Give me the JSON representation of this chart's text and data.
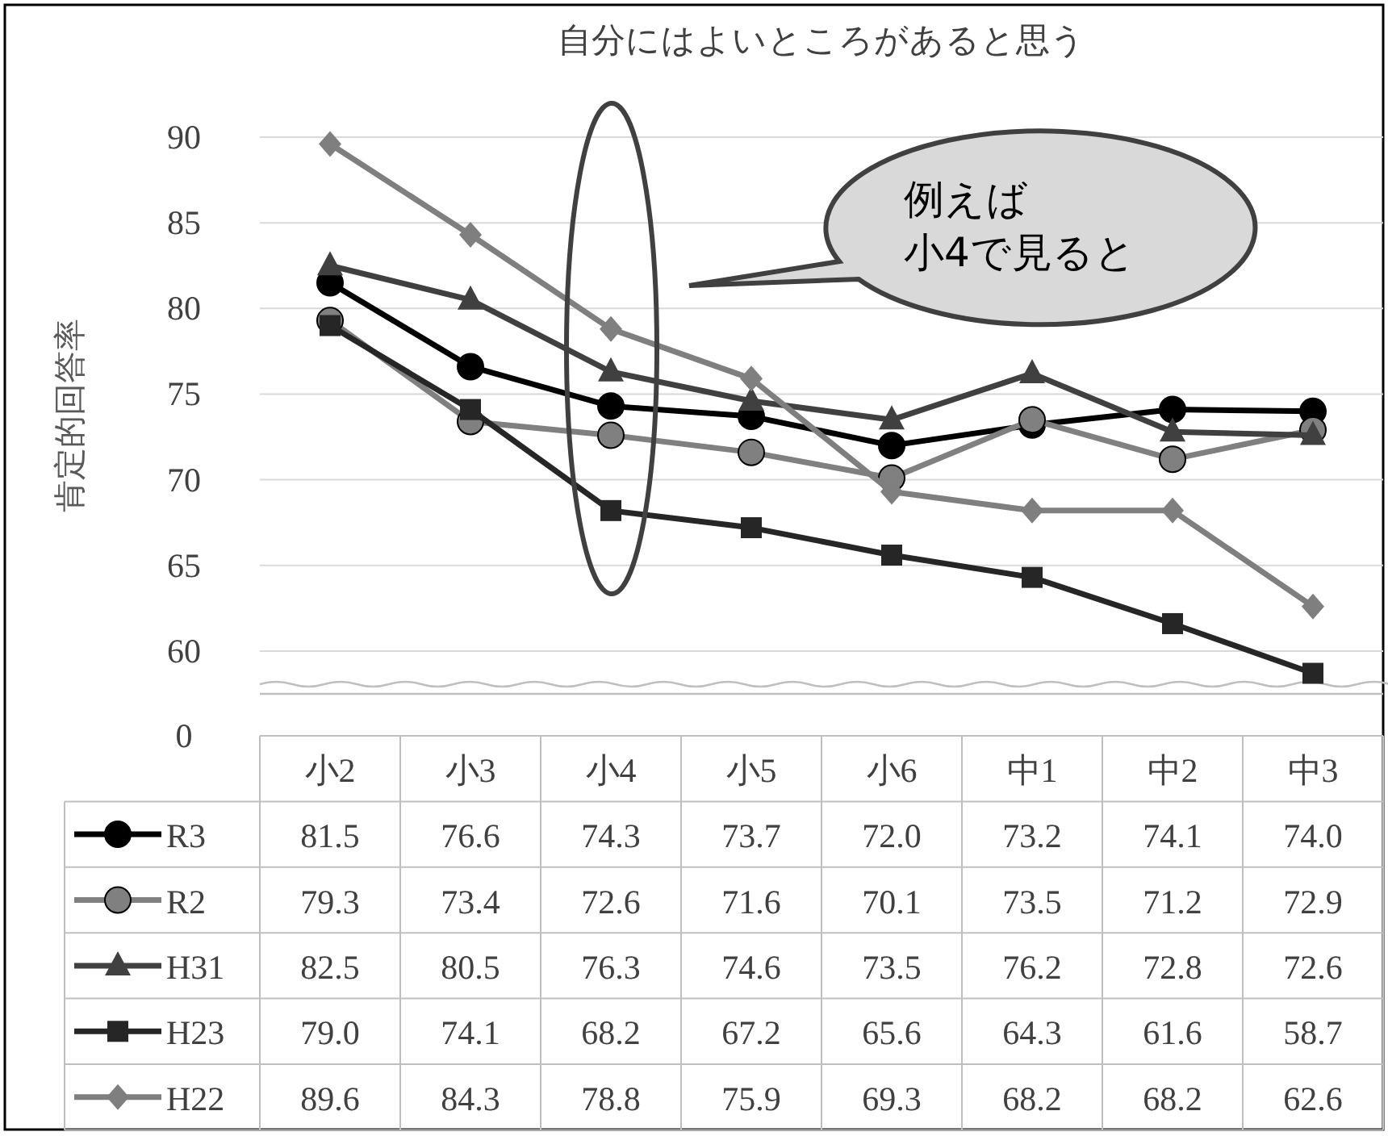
{
  "chart_data": {
    "type": "line",
    "title": "自分にはよいところがあると思う",
    "ylabel": "肯定的回答率",
    "categories": [
      "小2",
      "小3",
      "小4",
      "小5",
      "小6",
      "中1",
      "中2",
      "中3"
    ],
    "series": [
      {
        "name": "R3",
        "color": "#000000",
        "marker": "circle",
        "values": [
          81.5,
          76.6,
          74.3,
          73.7,
          72.0,
          73.2,
          74.1,
          74.0
        ],
        "value_labels": [
          "81.5",
          "76.6",
          "74.3",
          "73.7",
          "72.0",
          "73.2",
          "74.1",
          "74.0"
        ]
      },
      {
        "name": "R2",
        "color": "#808080",
        "marker": "circle",
        "values": [
          79.3,
          73.4,
          72.6,
          71.6,
          70.1,
          73.5,
          71.2,
          72.9
        ],
        "value_labels": [
          "79.3",
          "73.4",
          "72.6",
          "71.6",
          "70.1",
          "73.5",
          "71.2",
          "72.9"
        ]
      },
      {
        "name": "H31",
        "color": "#404040",
        "marker": "triangle",
        "values": [
          82.5,
          80.5,
          76.3,
          74.6,
          73.5,
          76.2,
          72.8,
          72.6
        ],
        "value_labels": [
          "82.5",
          "80.5",
          "76.3",
          "74.6",
          "73.5",
          "76.2",
          "72.8",
          "72.6"
        ]
      },
      {
        "name": "H23",
        "color": "#262626",
        "marker": "square",
        "values": [
          79.0,
          74.1,
          68.2,
          67.2,
          65.6,
          64.3,
          61.6,
          58.7
        ],
        "value_labels": [
          "79.0",
          "74.1",
          "68.2",
          "67.2",
          "65.6",
          "64.3",
          "61.6",
          "58.7"
        ]
      },
      {
        "name": "H22",
        "color": "#7f7f7f",
        "marker": "diamond",
        "values": [
          89.6,
          84.3,
          78.8,
          75.9,
          69.3,
          68.2,
          68.2,
          62.6
        ],
        "value_labels": [
          "89.6",
          "84.3",
          "78.8",
          "75.9",
          "69.3",
          "68.2",
          "68.2",
          "62.6"
        ]
      }
    ],
    "ylim": [
      57.5,
      90
    ],
    "yticks": [
      60,
      65,
      70,
      75,
      80,
      85,
      90
    ],
    "grid": "y",
    "legend": "bottom",
    "line_style": "solid",
    "annotations": [
      "0",
      "例えば",
      "小4で見ると"
    ]
  }
}
